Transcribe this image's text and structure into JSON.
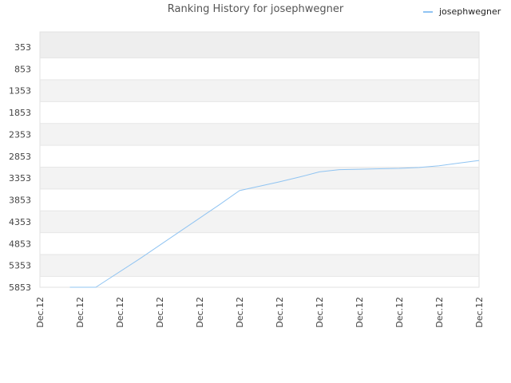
{
  "chart_data": {
    "type": "line",
    "title": "Ranking History for josephwegner",
    "xlabel": "",
    "ylabel": "",
    "y_inverted": true,
    "ylim": [
      5853,
      353
    ],
    "y_ticks": [
      353,
      853,
      1353,
      1853,
      2353,
      2853,
      3353,
      3853,
      4353,
      4853,
      5353,
      5853
    ],
    "x_tick_labels": [
      "Dec.12",
      "Dec.12",
      "Dec.12",
      "Dec.12",
      "Dec.12",
      "Dec.12",
      "Dec.12",
      "Dec.12",
      "Dec.12",
      "Dec.12",
      "Dec.12",
      "Dec.12"
    ],
    "grid": true,
    "legend_position": "top-right",
    "series": [
      {
        "name": "josephwegner",
        "color": "#90c4f2",
        "points": [
          [
            0.75,
            5853
          ],
          [
            1.4,
            5853
          ],
          [
            2.5,
            5200
          ],
          [
            3.5,
            4580
          ],
          [
            4.5,
            3960
          ],
          [
            5.0,
            3640
          ],
          [
            5.5,
            3540
          ],
          [
            6.0,
            3440
          ],
          [
            6.5,
            3330
          ],
          [
            7.0,
            3210
          ],
          [
            7.5,
            3160
          ],
          [
            8.0,
            3150
          ],
          [
            8.5,
            3140
          ],
          [
            9.0,
            3130
          ],
          [
            9.5,
            3110
          ],
          [
            10.0,
            3070
          ],
          [
            10.5,
            3010
          ],
          [
            11.0,
            2950
          ]
        ]
      }
    ]
  }
}
